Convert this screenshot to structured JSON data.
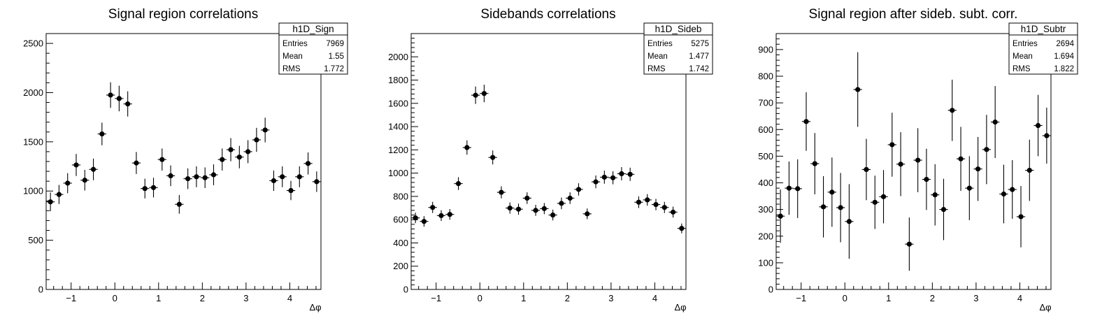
{
  "chart_data": [
    {
      "type": "scatter",
      "title": "Signal region correlations",
      "xlabel": "Δφ",
      "ylabel": "",
      "xlim": [
        -1.5708,
        4.7124
      ],
      "ylim": [
        0,
        2600
      ],
      "xticks": [
        -1,
        0,
        1,
        2,
        3,
        4
      ],
      "yticks": [
        0,
        500,
        1000,
        1500,
        2000,
        2500
      ],
      "stats": {
        "name": "h1D_Sign",
        "rows": [
          [
            "Entries",
            "7969"
          ],
          [
            "Mean",
            "1.55"
          ],
          [
            "RMS",
            "1.772"
          ]
        ]
      },
      "series": [
        {
          "values": [
            890,
            965,
            1080,
            1265,
            1110,
            1220,
            1580,
            1975,
            1940,
            1885,
            1285,
            1025,
            1035,
            1320,
            1155,
            865,
            1125,
            1145,
            1135,
            1165,
            1320,
            1420,
            1345,
            1400,
            1520,
            1620,
            1105,
            1145,
            1005,
            1145,
            1280,
            1095
          ],
          "errors": [
            95,
            97,
            102,
            112,
            105,
            110,
            115,
            130,
            130,
            128,
            112,
            100,
            100,
            112,
            105,
            95,
            105,
            106,
            105,
            106,
            112,
            118,
            114,
            117,
            122,
            125,
            104,
            106,
            98,
            106,
            112,
            104
          ]
        }
      ]
    },
    {
      "type": "scatter",
      "title": "Sidebands correlations",
      "xlabel": "Δφ",
      "ylabel": "",
      "xlim": [
        -1.5708,
        4.7124
      ],
      "ylim": [
        0,
        2200
      ],
      "xticks": [
        -1,
        0,
        1,
        2,
        3,
        4
      ],
      "yticks": [
        0,
        200,
        400,
        600,
        800,
        1000,
        1200,
        1400,
        1600,
        1800,
        2000
      ],
      "stats": {
        "name": "h1D_Sideb",
        "rows": [
          [
            "Entries",
            "5275"
          ],
          [
            "Mean",
            "1.477"
          ],
          [
            "RMS",
            "1.742"
          ]
        ]
      },
      "series": [
        {
          "values": [
            615,
            585,
            705,
            635,
            645,
            910,
            1220,
            1670,
            1685,
            1135,
            835,
            700,
            690,
            785,
            680,
            695,
            640,
            740,
            785,
            860,
            650,
            925,
            965,
            960,
            995,
            990,
            750,
            770,
            730,
            705,
            665,
            525
          ],
          "errors": [
            45,
            45,
            48,
            46,
            46,
            55,
            62,
            75,
            75,
            60,
            52,
            48,
            48,
            50,
            47,
            48,
            46,
            50,
            50,
            53,
            46,
            55,
            56,
            56,
            57,
            57,
            50,
            50,
            49,
            48,
            47,
            42
          ]
        }
      ]
    },
    {
      "type": "scatter",
      "title": "Signal region after sideb. subt. corr.",
      "xlabel": "Δφ",
      "ylabel": "",
      "xlim": [
        -1.5708,
        4.7124
      ],
      "ylim": [
        0,
        960
      ],
      "xticks": [
        -1,
        0,
        1,
        2,
        3,
        4
      ],
      "yticks": [
        0,
        100,
        200,
        300,
        400,
        500,
        600,
        700,
        800,
        900
      ],
      "stats": {
        "name": "h1D_Subtr",
        "rows": [
          [
            "Entries",
            "2694"
          ],
          [
            "Mean",
            "1.694"
          ],
          [
            "RMS",
            "1.822"
          ]
        ]
      },
      "series": [
        {
          "values": [
            275,
            380,
            378,
            630,
            472,
            310,
            365,
            307,
            255,
            750,
            450,
            327,
            348,
            543,
            470,
            170,
            485,
            413,
            355,
            300,
            672,
            490,
            380,
            452,
            525,
            628,
            358,
            375,
            273,
            447,
            615,
            577
          ],
          "errors": [
            100,
            100,
            110,
            110,
            115,
            115,
            130,
            130,
            140,
            140,
            115,
            100,
            100,
            120,
            120,
            100,
            120,
            115,
            115,
            115,
            115,
            120,
            120,
            120,
            130,
            135,
            110,
            110,
            115,
            115,
            115,
            105
          ]
        }
      ]
    }
  ]
}
